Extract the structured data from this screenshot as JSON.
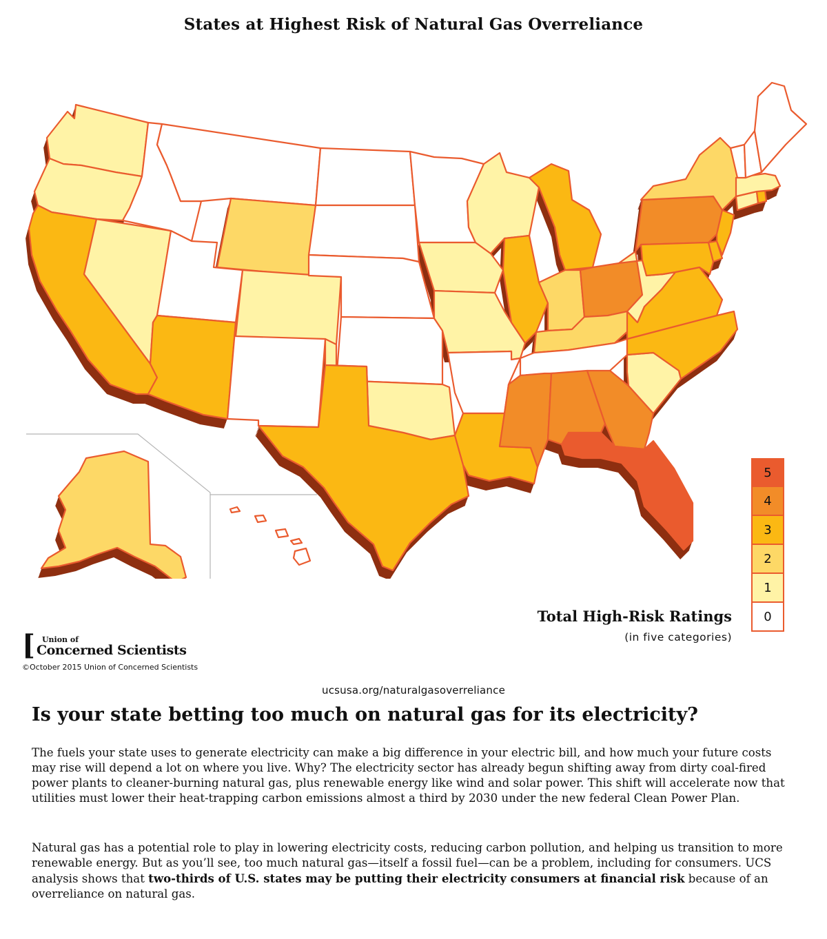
{
  "title": "States at Highest Risk of Natural Gas Overreliance",
  "legend": {
    "title": "Total High-Risk Ratings",
    "subtitle": "(in five categories)",
    "levels": [
      {
        "value": "5",
        "color": "#ea5b2e"
      },
      {
        "value": "4",
        "color": "#f28c28"
      },
      {
        "value": "3",
        "color": "#fbb813"
      },
      {
        "value": "2",
        "color": "#fdd866"
      },
      {
        "value": "1",
        "color": "#fff3a6"
      },
      {
        "value": "0",
        "color": "#ffffff"
      }
    ]
  },
  "state_ratings": {
    "Washington": 1,
    "Oregon": 1,
    "California": 3,
    "Nevada": 1,
    "Idaho": 0,
    "Montana": 0,
    "Wyoming": 2,
    "Utah": 0,
    "Colorado": 1,
    "Arizona": 3,
    "New Mexico": 0,
    "North Dakota": 0,
    "South Dakota": 0,
    "Nebraska": 0,
    "Kansas": 0,
    "Oklahoma": 1,
    "Texas": 3,
    "Minnesota": 0,
    "Iowa": 1,
    "Missouri": 1,
    "Arkansas": 0,
    "Louisiana": 3,
    "Wisconsin": 1,
    "Illinois": 3,
    "Michigan": 3,
    "Indiana": 2,
    "Ohio": 4,
    "Kentucky": 2,
    "Tennessee": 0,
    "Mississippi": 4,
    "Alabama": 4,
    "Georgia": 4,
    "Florida": 5,
    "South Carolina": 1,
    "North Carolina": 3,
    "Virginia": 3,
    "West Virginia": 1,
    "Pennsylvania": 4,
    "New York": 2,
    "Maryland": 3,
    "Delaware": 3,
    "New Jersey": 3,
    "Connecticut": 1,
    "Rhode Island": 3,
    "Massachusetts": 1,
    "Vermont": 0,
    "New Hampshire": 0,
    "Maine": 0,
    "Alaska": 2,
    "Hawaii": 0
  },
  "organization": {
    "logo_line1": "Union of",
    "logo_line2": "Concerned Scientists",
    "copyright": "©October 2015 Union of Concerned Scientists"
  },
  "url": "ucsusa.org/naturalgasoverreliance",
  "headline": "Is your state betting too much on natural gas for its electricity?",
  "paragraph1": "The fuels your state uses to generate electricity can make a big difference in your electric bill, and how much your future costs may rise will depend a lot on where you live. Why? The electricity sector has already begun shifting away from dirty coal-fired power plants to cleaner-burning natural gas, plus renewable energy like wind and solar power. This shift will accelerate now that utilities must lower their heat-trapping carbon emissions almost a third by 2030 under the new federal Clean Power Plan.",
  "paragraph2": {
    "before": "Natural gas has a potential role to play in lowering electricity costs, reducing carbon pollution, and helping us transition to more renewable energy. But as you’ll see, too much natural gas—itself a fossil fuel—can be a problem, including for consumers. UCS analysis shows that ",
    "bold": "two-thirds of U.S. states may be putting their electricity consumers at financial risk",
    "after": " because of an overreliance on natural gas."
  }
}
